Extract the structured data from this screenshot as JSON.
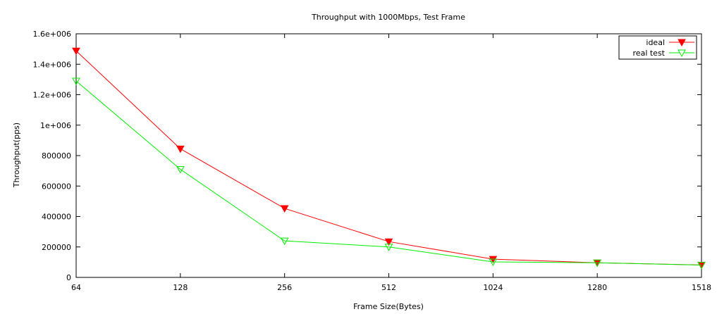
{
  "chart_data": {
    "type": "line",
    "title": "Throughput with 1000Mbps, Test Frame",
    "xlabel": "Frame Size(Bytes)",
    "ylabel": "Throughput(pps)",
    "categories": [
      "64",
      "128",
      "256",
      "512",
      "1024",
      "1280",
      "1518"
    ],
    "ylim": [
      0,
      1600000
    ],
    "yticks": [
      0,
      200000,
      400000,
      600000,
      800000,
      1000000,
      1200000,
      1400000,
      1600000
    ],
    "ytick_labels": [
      "0",
      "200000",
      "400000",
      "600000",
      "800000",
      "1e+006",
      "1.2e+006",
      "1.4e+006",
      "1.6e+006"
    ],
    "grid": false,
    "legend_position": "top-right",
    "series": [
      {
        "name": "ideal",
        "color": "#ff0000",
        "marker": "filled-down-triangle",
        "values": [
          1488095,
          844595,
          452899,
          234962,
          119732,
          96154,
          81274
        ]
      },
      {
        "name": "real test",
        "color": "#00ee00",
        "marker": "hollow-down-triangle",
        "values": [
          1290000,
          710000,
          240000,
          200000,
          102000,
          96000,
          81000
        ]
      }
    ]
  }
}
